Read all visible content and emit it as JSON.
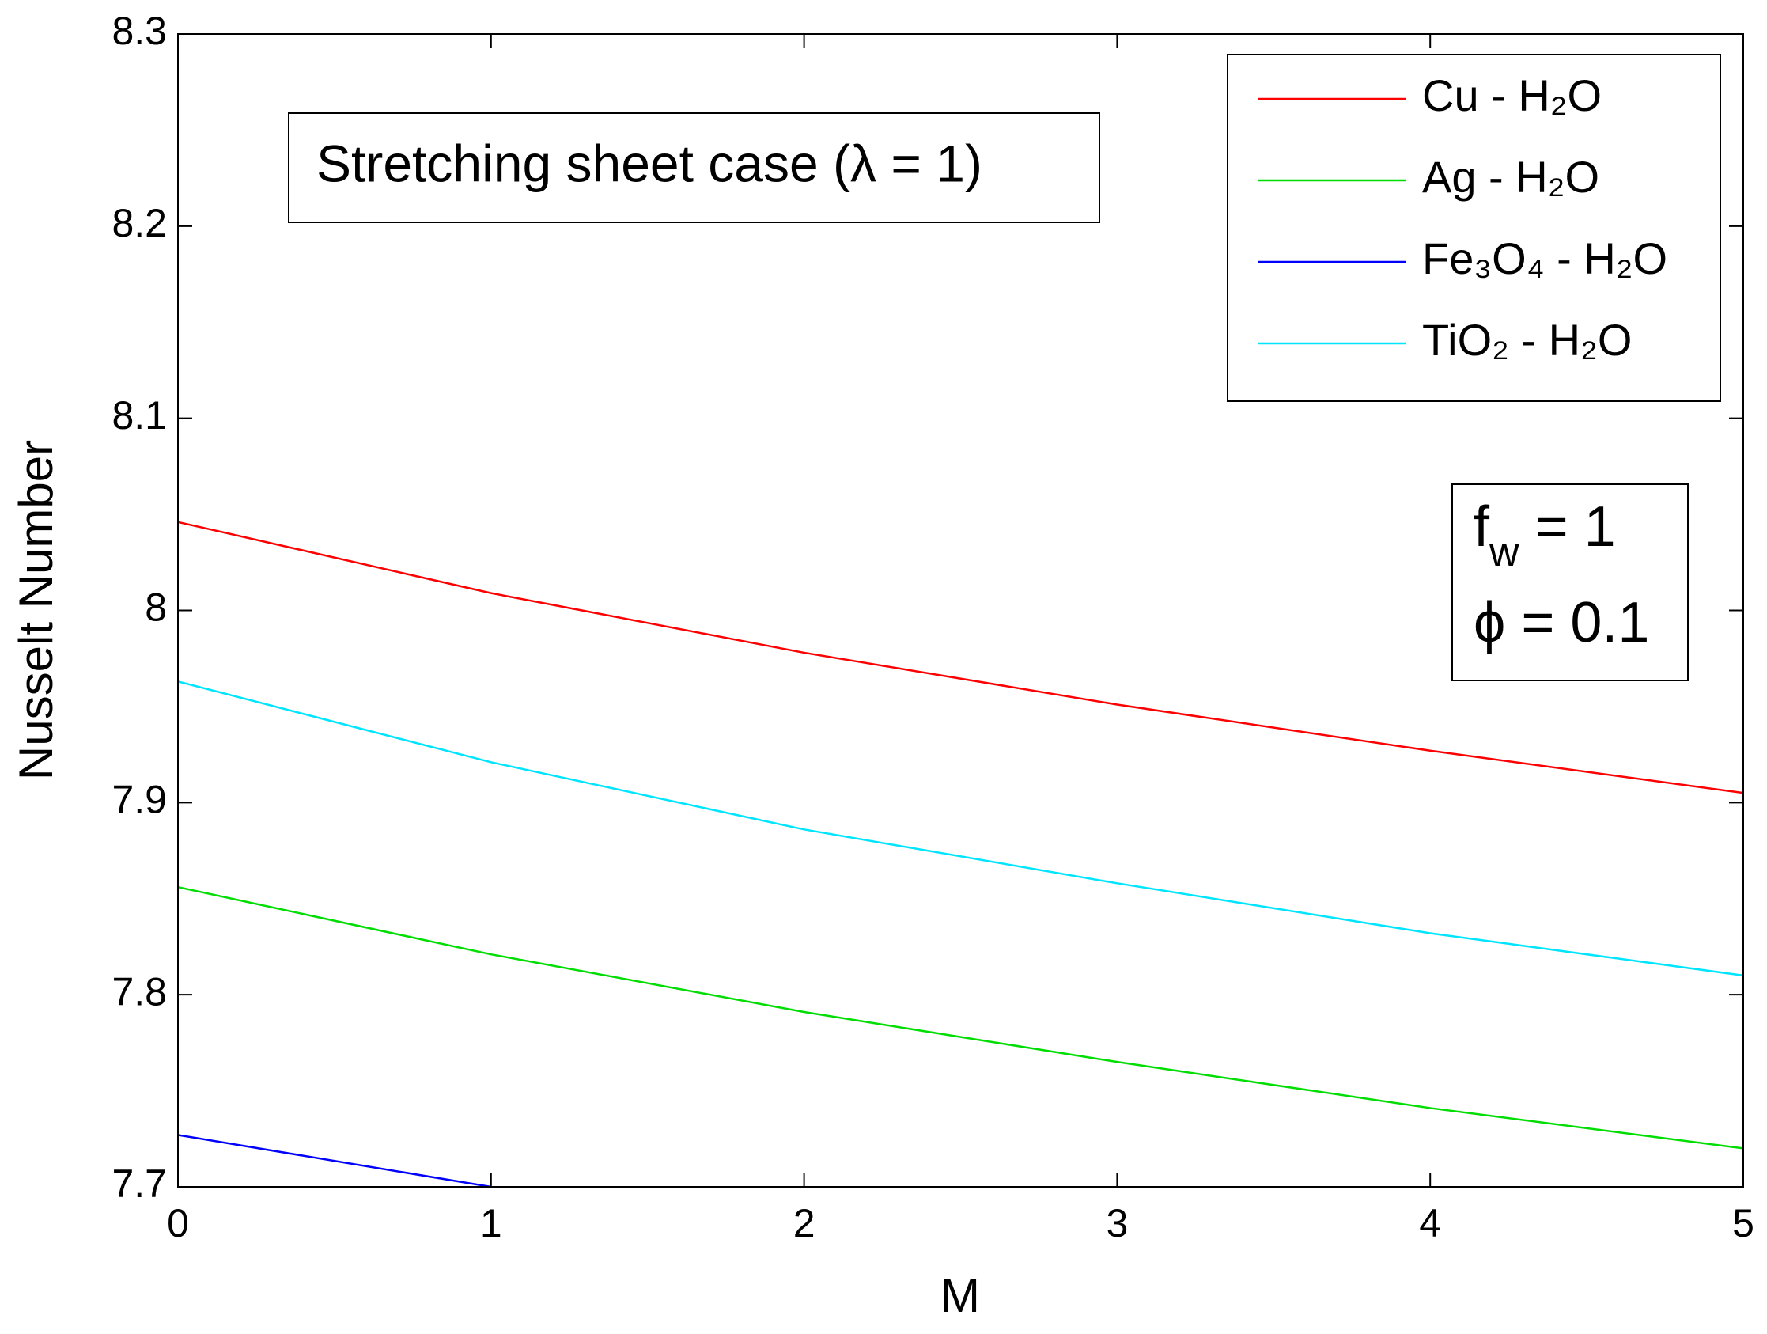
{
  "chart_data": {
    "type": "line",
    "annotation": "Stretching sheet case (λ = 1)",
    "parameters": [
      [
        "f",
        "w",
        " = 1"
      ],
      [
        "ϕ = 0.1"
      ]
    ],
    "xlabel": "M",
    "ylabel": "Nusselt Number",
    "x": [
      0,
      1,
      2,
      3,
      4,
      5
    ],
    "series": [
      {
        "name": "Cu - H₂O",
        "color": "#ff0000",
        "values": [
          8.046,
          8.009,
          7.978,
          7.951,
          7.927,
          7.905
        ]
      },
      {
        "name": "Ag - H₂O",
        "color": "#00dd00",
        "values": [
          7.856,
          7.821,
          7.791,
          7.765,
          7.741,
          7.72
        ]
      },
      {
        "name": "Fe₃O₄ - H₂O",
        "color": "#0000ff",
        "values": [
          7.727,
          7.7,
          null,
          null,
          null,
          null
        ]
      },
      {
        "name": "TiO₂ - H₂O",
        "color": "#00e5ff",
        "values": [
          7.963,
          7.921,
          7.886,
          7.858,
          7.832,
          7.81
        ]
      }
    ],
    "xlim": [
      0,
      5
    ],
    "xticks": [
      0,
      1,
      2,
      3,
      4,
      5
    ],
    "ylim": [
      7.7,
      8.3
    ],
    "yticks": [
      7.7,
      7.8,
      7.9,
      8,
      8.1,
      8.2,
      8.3
    ],
    "legend": "upper right"
  }
}
